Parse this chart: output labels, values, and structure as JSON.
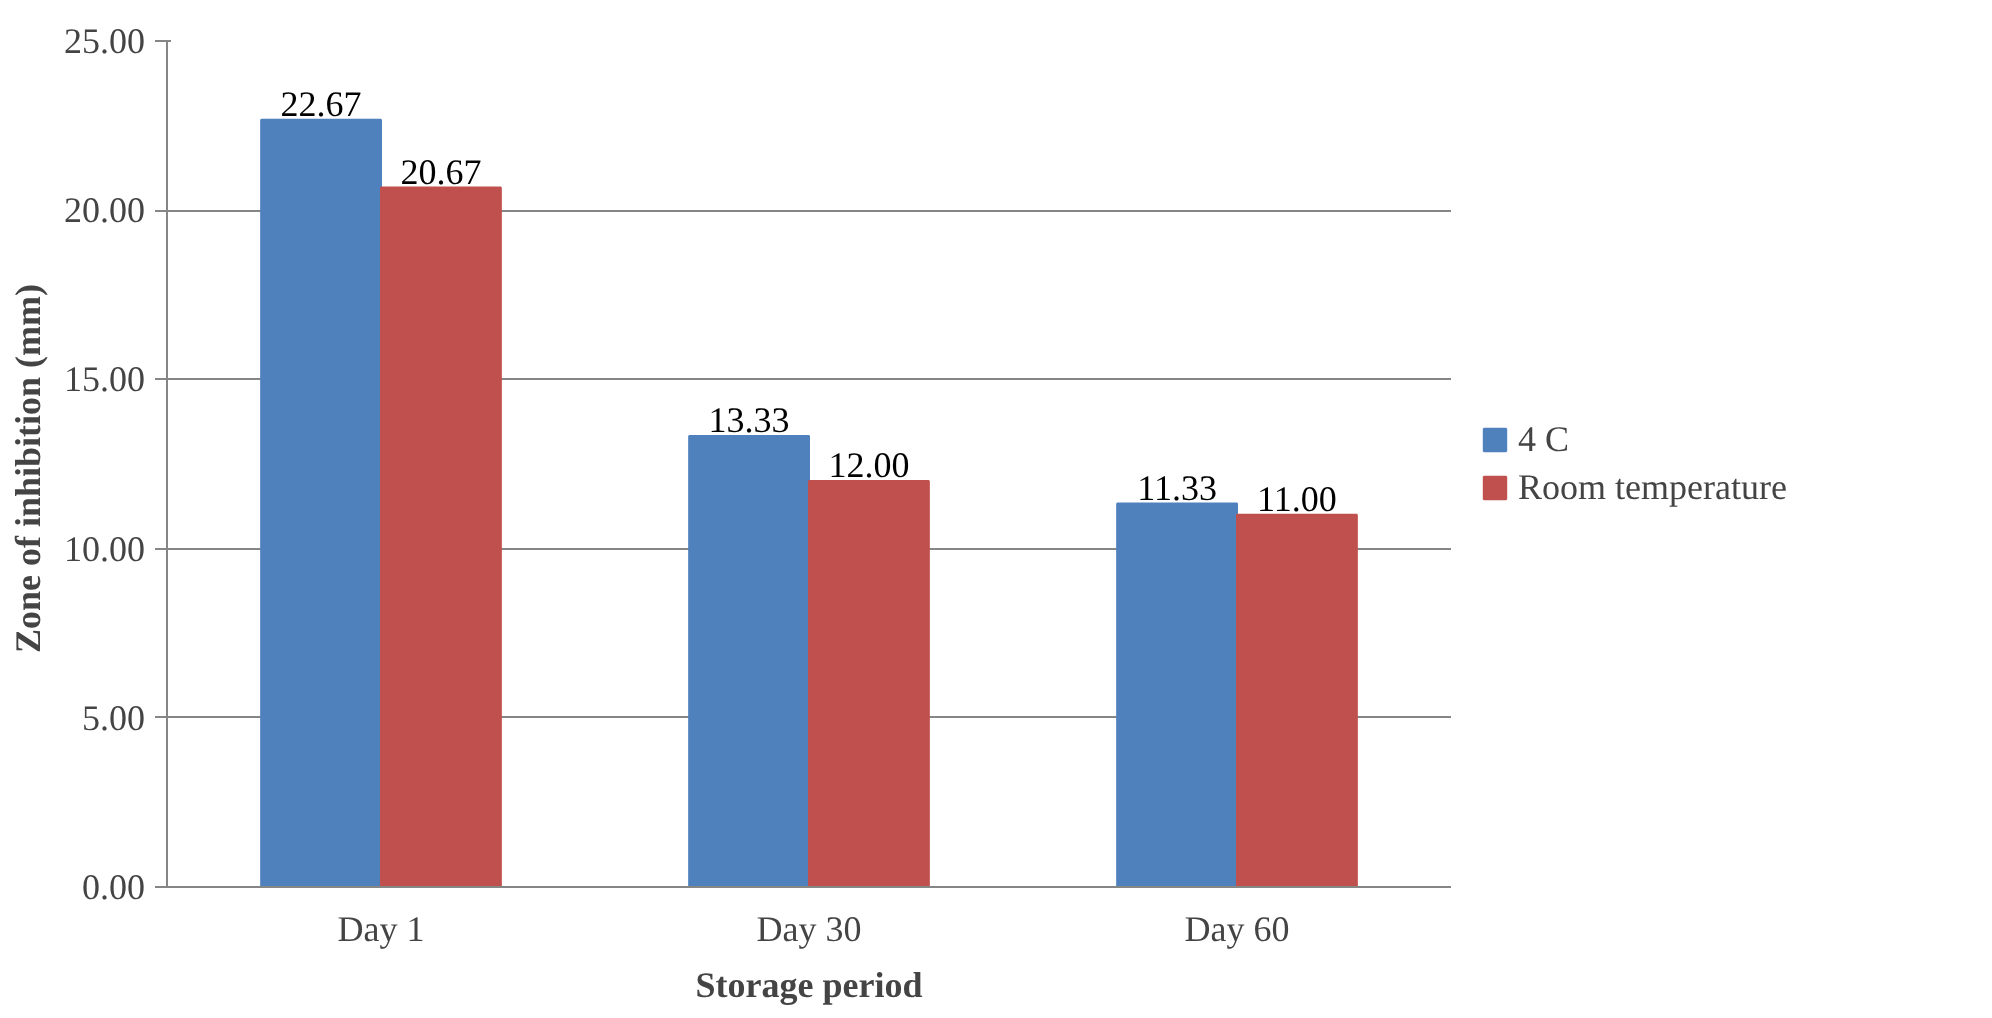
{
  "chart_data": {
    "type": "bar",
    "xlabel": "Storage period",
    "ylabel": "Zone of inhibition  (mm)",
    "categories": [
      "Day 1",
      "Day 30",
      "Day 60"
    ],
    "series": [
      {
        "name": "4 C",
        "color": "#4f81bd",
        "values": [
          22.67,
          13.33,
          11.33
        ],
        "value_labels": [
          "22.67",
          "13.33",
          "11.33"
        ]
      },
      {
        "name": "Room temperature",
        "color": "#c0504d",
        "values": [
          20.67,
          12.0,
          11.0
        ],
        "value_labels": [
          "20.67",
          "12.00",
          "11.00"
        ]
      }
    ],
    "ylim": [
      0,
      25
    ],
    "yticks": [
      {
        "value": 0,
        "label": "0.00"
      },
      {
        "value": 5,
        "label": "5.00"
      },
      {
        "value": 10,
        "label": "10.00"
      },
      {
        "value": 15,
        "label": "15.00"
      },
      {
        "value": 20,
        "label": "20.00"
      },
      {
        "value": 25,
        "label": "25.00"
      }
    ],
    "grid": "y",
    "legend": "right"
  }
}
